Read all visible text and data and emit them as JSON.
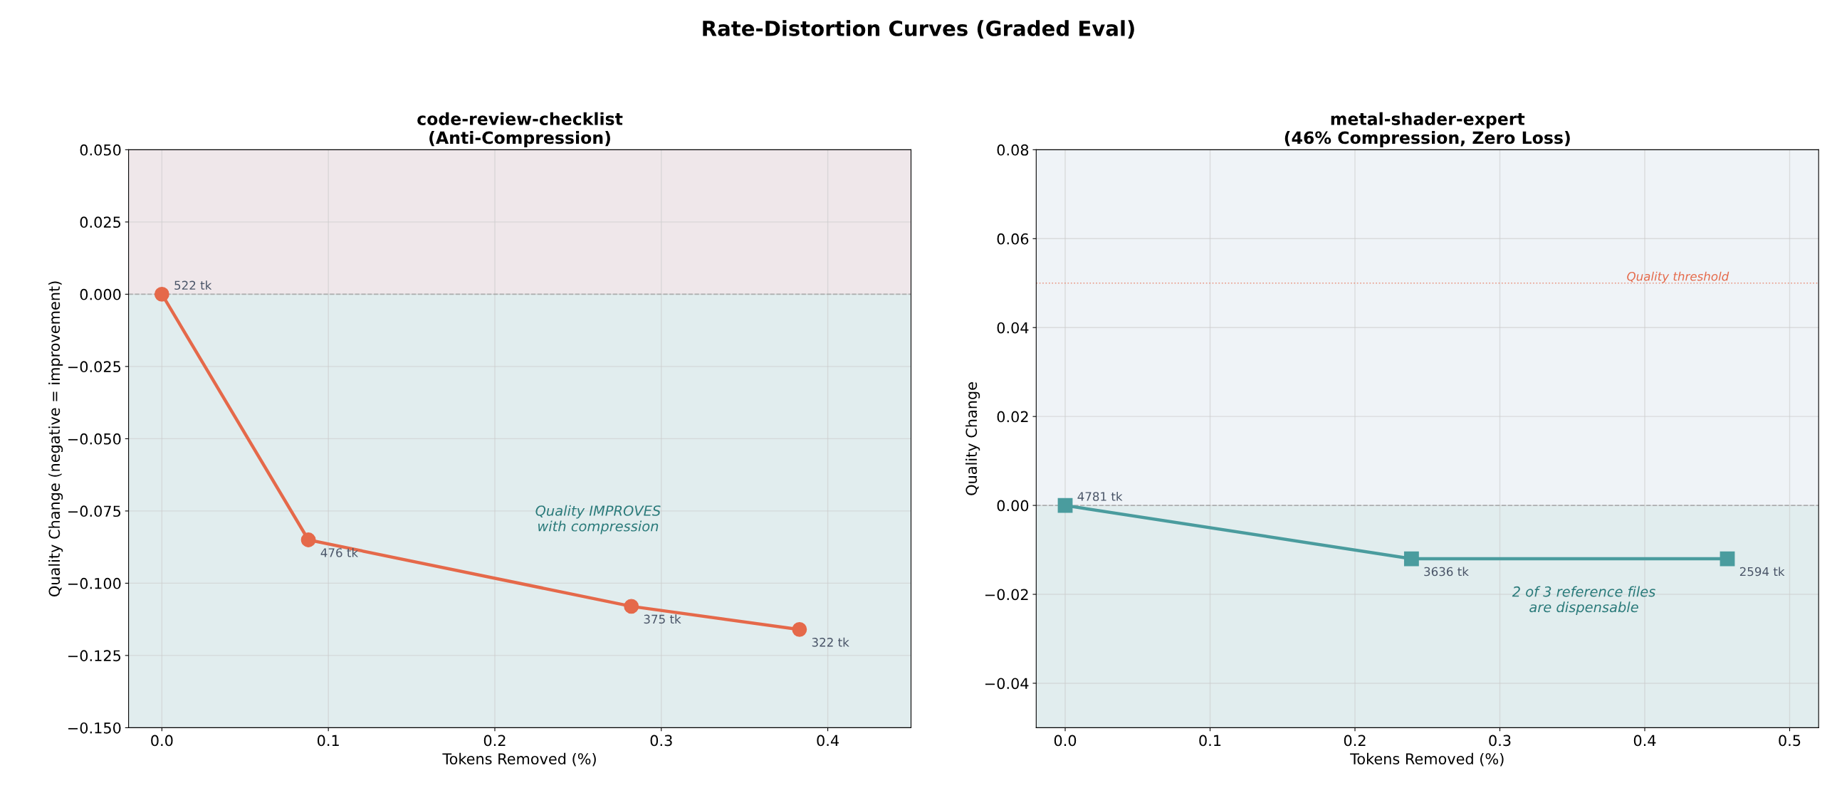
{
  "chart_data": [
    {
      "type": "line",
      "title": "code-review-checklist\n(Anti-Compression)",
      "xlabel": "Tokens Removed (%)",
      "ylabel": "Quality Change (negative = improvement)",
      "x": [
        0,
        0.088,
        0.282,
        0.383
      ],
      "series": [
        {
          "color": "#e5694a",
          "values": [
            0,
            -0.085,
            -0.108,
            -0.116
          ]
        }
      ],
      "marker": "circle",
      "line_style": "solid",
      "grid": true,
      "xlim": [
        -0.02,
        0.45
      ],
      "xticks": [
        {
          "value": 0,
          "label": "0.0"
        },
        0.1,
        0.2,
        0.3,
        0.4
      ],
      "ylim": [
        -0.15,
        0.05
      ],
      "yticks": [
        {
          "value": -0.15,
          "label": "−0.150"
        },
        {
          "value": -0.125,
          "label": "−0.125"
        },
        {
          "value": -0.1,
          "label": "−0.100"
        },
        {
          "value": -0.075,
          "label": "−0.075"
        },
        {
          "value": -0.05,
          "label": "−0.050"
        },
        {
          "value": -0.025,
          "label": "−0.025"
        },
        {
          "value": 0,
          "label": "0.000"
        },
        0.025,
        {
          "value": 0.05,
          "label": "0.050"
        }
      ],
      "bands": [
        {
          "axis": "y",
          "from": 0,
          "to": 0.05,
          "color": "#efe7ea"
        },
        {
          "axis": "y",
          "from": -0.15,
          "to": 0,
          "color": "#e1edee"
        }
      ],
      "ref_lines": [
        {
          "axis": "y",
          "value": 0,
          "color": "#999999",
          "line_style": "dashed"
        }
      ],
      "annotations": [
        "Rate-Distortion Curves (Graded Eval)",
        {
          "text": "522 tk",
          "x": 0,
          "y": 0
        },
        {
          "text": "476 tk",
          "x": 0.088,
          "y": -0.085
        },
        {
          "text": "375 tk",
          "x": 0.282,
          "y": -0.108
        },
        {
          "text": "322 tk",
          "x": 0.383,
          "y": -0.116
        },
        "Quality IMPROVES\nwith compression"
      ]
    },
    {
      "type": "line",
      "title": "metal-shader-expert\n(46% Compression, Zero Loss)",
      "xlabel": "Tokens Removed (%)",
      "ylabel": "Quality Change",
      "x": [
        0,
        0.239,
        0.457
      ],
      "series": [
        {
          "color": "#4a9c9e",
          "values": [
            0,
            -0.012,
            -0.012
          ]
        }
      ],
      "marker": "square",
      "line_style": "solid",
      "grid": true,
      "xlim": [
        -0.02,
        0.52
      ],
      "xticks": [
        {
          "value": 0,
          "label": "0.0"
        },
        0.1,
        0.2,
        0.3,
        0.4,
        0.5
      ],
      "ylim": [
        -0.05,
        0.08
      ],
      "yticks": [
        {
          "value": -0.04,
          "label": "−0.04"
        },
        {
          "value": -0.02,
          "label": "−0.02"
        },
        {
          "value": 0,
          "label": "0.00"
        },
        {
          "value": 0.02,
          "label": "0.02"
        },
        {
          "value": 0.04,
          "label": "0.04"
        },
        {
          "value": 0.06,
          "label": "0.06"
        },
        {
          "value": 0.08,
          "label": "0.08"
        }
      ],
      "bands": [
        {
          "axis": "y",
          "from": -0.05,
          "to": 0,
          "color": "#e1edee"
        }
      ],
      "ref_lines": [
        {
          "axis": "y",
          "value": 0,
          "color": "#999999",
          "line_style": "dashed"
        },
        {
          "axis": "y",
          "value": 0.05,
          "label": "Quality threshold",
          "color": "#e5694a",
          "line_style": "dotted"
        }
      ],
      "annotations": [
        {
          "text": "4781 tk",
          "x": 0,
          "y": 0
        },
        {
          "text": "3636 tk",
          "x": 0.239,
          "y": -0.012
        },
        {
          "text": "2594 tk",
          "x": 0.457,
          "y": -0.012
        },
        "2 of 3 reference files\nare dispensable"
      ]
    }
  ]
}
